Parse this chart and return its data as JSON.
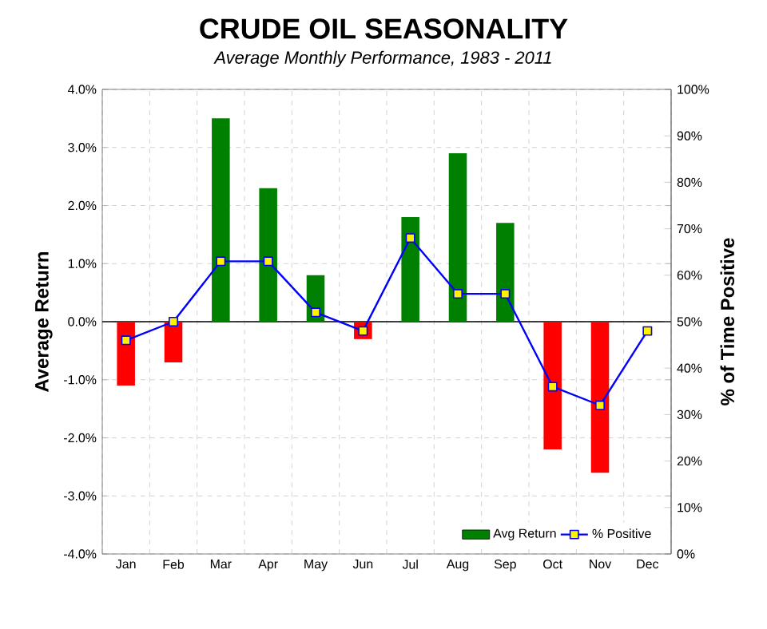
{
  "chart_data": {
    "type": "bar",
    "title": "CRUDE OIL SEASONALITY",
    "subtitle": "Average Monthly Performance, 1983 - 2011",
    "ylabel": "Average Return",
    "y2label": "% of Time Positive",
    "categories": [
      "Jan",
      "Feb",
      "Mar",
      "Apr",
      "May",
      "Jun",
      "Jul",
      "Aug",
      "Sep",
      "Oct",
      "Nov",
      "Dec"
    ],
    "series": [
      {
        "name": "Avg Return",
        "color": "#008000",
        "colors": [
          "#ff0000",
          "#ff0000",
          "#008000",
          "#008000",
          "#008000",
          "#ff0000",
          "#008000",
          "#008000",
          "#008000",
          "#ff0000",
          "#ff0000",
          "#008000"
        ],
        "values": [
          -1.1,
          -0.7,
          3.5,
          2.3,
          0.8,
          -0.3,
          1.8,
          2.9,
          1.7,
          -2.2,
          -2.6,
          null
        ]
      },
      {
        "name": "% Positive",
        "type": "line",
        "axis": "y2",
        "color": "#0000ff",
        "values": [
          46,
          50,
          63,
          63,
          52,
          48,
          68,
          56,
          56,
          36,
          32,
          48
        ]
      }
    ],
    "ylim": [
      -4,
      4
    ],
    "yticks": [
      {
        "value": -4,
        "label": "-4.0%"
      },
      {
        "value": -3,
        "label": "-3.0%"
      },
      {
        "value": -2,
        "label": "-2.0%"
      },
      {
        "value": -1,
        "label": "-1.0%"
      },
      {
        "value": 0,
        "label": "0.0%"
      },
      {
        "value": 1,
        "label": "1.0%"
      },
      {
        "value": 2,
        "label": "2.0%"
      },
      {
        "value": 3,
        "label": "3.0%"
      },
      {
        "value": 4,
        "label": "4.0%"
      }
    ],
    "y2lim": [
      0,
      100
    ],
    "y2ticks": [
      {
        "value": 0,
        "label": "0%"
      },
      {
        "value": 10,
        "label": "10%"
      },
      {
        "value": 20,
        "label": "20%"
      },
      {
        "value": 30,
        "label": "30%"
      },
      {
        "value": 40,
        "label": "40%"
      },
      {
        "value": 50,
        "label": "50%"
      },
      {
        "value": 60,
        "label": "60%"
      },
      {
        "value": 70,
        "label": "70%"
      },
      {
        "value": 80,
        "label": "80%"
      },
      {
        "value": 90,
        "label": "90%"
      },
      {
        "value": 100,
        "label": "100%"
      }
    ],
    "grid": true,
    "legend": "bottom right",
    "marker": "square",
    "line_style": "solid"
  }
}
